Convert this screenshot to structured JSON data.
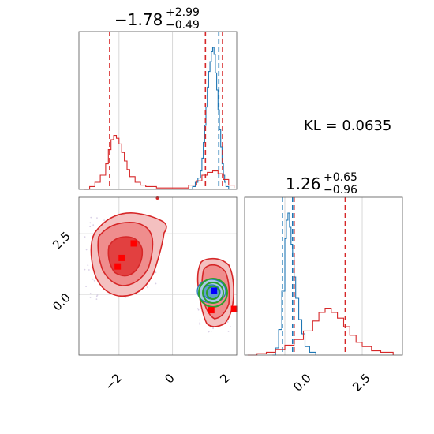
{
  "kl_text": "KL = 0.0635",
  "chart_data": [
    {
      "type": "histogram",
      "panel": "top-left",
      "title": {
        "main": "−1.78",
        "sup": "+2.99",
        "sub": "−0.49"
      },
      "xlim": [
        -3.5,
        2.4
      ],
      "grid": true,
      "vlines_red": [
        -2.35,
        1.23,
        1.87
      ],
      "vlines_blue": [
        1.73
      ],
      "series": [
        {
          "color": "#1f77b4",
          "bins": [
            [
              0.6,
              0.0
            ],
            [
              0.75,
              0.02
            ],
            [
              0.85,
              0.05
            ],
            [
              0.95,
              0.08
            ],
            [
              1.05,
              0.13
            ],
            [
              1.1,
              0.22
            ],
            [
              1.15,
              0.33
            ],
            [
              1.2,
              0.45
            ],
            [
              1.25,
              0.58
            ],
            [
              1.3,
              0.72
            ],
            [
              1.35,
              0.83
            ],
            [
              1.4,
              0.9
            ],
            [
              1.45,
              0.97
            ],
            [
              1.5,
              1.0
            ],
            [
              1.55,
              0.95
            ],
            [
              1.6,
              0.82
            ],
            [
              1.65,
              0.7
            ],
            [
              1.7,
              0.56
            ],
            [
              1.75,
              0.42
            ],
            [
              1.8,
              0.3
            ],
            [
              1.85,
              0.18
            ],
            [
              1.9,
              0.1
            ],
            [
              1.95,
              0.05
            ],
            [
              2.0,
              0.02
            ],
            [
              2.1,
              0.0
            ]
          ]
        },
        {
          "color": "#d62728",
          "bins": [
            [
              -3.3,
              0.0
            ],
            [
              -3.1,
              0.02
            ],
            [
              -2.9,
              0.05
            ],
            [
              -2.7,
              0.1
            ],
            [
              -2.5,
              0.18
            ],
            [
              -2.4,
              0.28
            ],
            [
              -2.3,
              0.35
            ],
            [
              -2.2,
              0.38
            ],
            [
              -2.1,
              0.36
            ],
            [
              -2.0,
              0.32
            ],
            [
              -1.9,
              0.26
            ],
            [
              -1.8,
              0.2
            ],
            [
              -1.7,
              0.14
            ],
            [
              -1.6,
              0.09
            ],
            [
              -1.4,
              0.05
            ],
            [
              -1.2,
              0.03
            ],
            [
              -1.0,
              0.02
            ],
            [
              -0.6,
              0.01
            ],
            [
              0.0,
              0.01
            ],
            [
              0.6,
              0.03
            ],
            [
              0.9,
              0.06
            ],
            [
              1.1,
              0.1
            ],
            [
              1.3,
              0.12
            ],
            [
              1.5,
              0.13
            ],
            [
              1.7,
              0.11
            ],
            [
              1.9,
              0.07
            ],
            [
              2.1,
              0.03
            ],
            [
              2.3,
              0.01
            ]
          ]
        }
      ]
    },
    {
      "type": "scatter-contour",
      "panel": "bottom-left",
      "xlim": [
        -3.5,
        2.4
      ],
      "ylim": [
        -2.5,
        4.0
      ],
      "grid": true,
      "xticks": [
        "−2",
        "0",
        "2"
      ],
      "yticks": [
        "2.5",
        "0.0"
      ],
      "red_markers": [
        [
          -1.9,
          1.5
        ],
        [
          -2.05,
          1.15
        ],
        [
          -1.45,
          2.1
        ],
        [
          1.45,
          -0.65
        ],
        [
          2.3,
          -0.6
        ]
      ],
      "blue_markers": [
        [
          1.55,
          0.15
        ]
      ],
      "blue_center": [
        1.45,
        0.1
      ],
      "green_center": [
        1.5,
        0.05
      ]
    },
    {
      "type": "histogram",
      "panel": "bottom-right",
      "title": {
        "main": "1.26",
        "sup": "+0.65",
        "sub": "−0.96"
      },
      "xlim": [
        -1.3,
        3.8
      ],
      "grid": true,
      "xticks": [
        "0.0",
        "2.5"
      ],
      "vlines_red": [
        0.3,
        1.95
      ],
      "vlines_blue": [
        -0.08,
        0.25
      ],
      "series": [
        {
          "color": "#1f77b4",
          "bins": [
            [
              -0.4,
              0.0
            ],
            [
              -0.3,
              0.05
            ],
            [
              -0.2,
              0.18
            ],
            [
              -0.1,
              0.45
            ],
            [
              0.0,
              0.82
            ],
            [
              0.05,
              0.95
            ],
            [
              0.1,
              1.0
            ],
            [
              0.15,
              0.9
            ],
            [
              0.2,
              0.78
            ],
            [
              0.25,
              0.72
            ],
            [
              0.3,
              0.55
            ],
            [
              0.35,
              0.4
            ],
            [
              0.45,
              0.25
            ],
            [
              0.55,
              0.15
            ],
            [
              0.65,
              0.06
            ],
            [
              0.8,
              0.02
            ],
            [
              1.0,
              0.0
            ]
          ]
        },
        {
          "color": "#d62728",
          "bins": [
            [
              -1.2,
              0.0
            ],
            [
              -0.9,
              0.01
            ],
            [
              -0.6,
              0.02
            ],
            [
              -0.3,
              0.04
            ],
            [
              0.0,
              0.07
            ],
            [
              0.3,
              0.11
            ],
            [
              0.6,
              0.17
            ],
            [
              0.9,
              0.24
            ],
            [
              1.1,
              0.3
            ],
            [
              1.3,
              0.33
            ],
            [
              1.5,
              0.3
            ],
            [
              1.7,
              0.26
            ],
            [
              1.9,
              0.2
            ],
            [
              2.1,
              0.14
            ],
            [
              2.3,
              0.09
            ],
            [
              2.5,
              0.06
            ],
            [
              2.8,
              0.03
            ],
            [
              3.1,
              0.02
            ],
            [
              3.5,
              0.0
            ]
          ]
        }
      ]
    }
  ]
}
